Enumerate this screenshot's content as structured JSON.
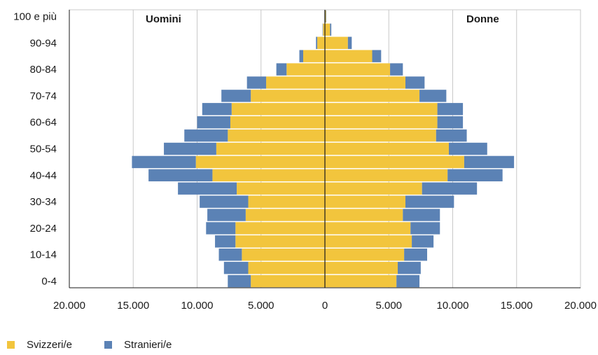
{
  "chart_data": {
    "type": "bar",
    "orientation": "horizontal",
    "subtype": "population-pyramid",
    "side_labels": {
      "left": "Uomini",
      "right": "Donne"
    },
    "categories": [
      "0-4",
      "5-9",
      "10-14",
      "15-19",
      "20-24",
      "25-29",
      "30-34",
      "35-39",
      "40-44",
      "45-49",
      "50-54",
      "55-59",
      "60-64",
      "65-69",
      "70-74",
      "75-79",
      "80-84",
      "85-89",
      "90-94",
      "95-99",
      "100 e più"
    ],
    "category_labels": [
      "0-4",
      "",
      "10-14",
      "",
      "20-24",
      "",
      "30-34",
      "",
      "40-44",
      "",
      "50-54",
      "",
      "60-64",
      "",
      "70-74",
      "",
      "80-84",
      "",
      "90-94",
      "",
      "100 e più"
    ],
    "series": [
      {
        "name": "Svizzeri/e",
        "color": "#f2c53d",
        "men": [
          5800,
          6000,
          6500,
          7000,
          7000,
          6200,
          6000,
          6900,
          8800,
          10100,
          8500,
          7600,
          7400,
          7300,
          5800,
          4600,
          3000,
          1700,
          600,
          150,
          30
        ],
        "women": [
          5600,
          5700,
          6200,
          6800,
          6700,
          6100,
          6300,
          7600,
          9600,
          10900,
          9700,
          8700,
          8800,
          8800,
          7400,
          6300,
          5100,
          3700,
          1800,
          400,
          80
        ]
      },
      {
        "name": "Stranieri/e",
        "color": "#5b82b5",
        "men": [
          1800,
          1900,
          1800,
          1600,
          2300,
          3000,
          3800,
          4600,
          5000,
          5000,
          4100,
          3400,
          2600,
          2300,
          2300,
          1500,
          800,
          300,
          100,
          30,
          10
        ],
        "women": [
          1800,
          1800,
          1800,
          1700,
          2300,
          2900,
          3800,
          4300,
          4300,
          3900,
          3000,
          2400,
          2000,
          2000,
          2100,
          1500,
          1000,
          700,
          300,
          100,
          30
        ]
      }
    ],
    "x_ticks": [
      "20.000",
      "15.000",
      "10.000",
      "5.000",
      "0",
      "5.000",
      "10.000",
      "15.000",
      "20.000"
    ],
    "xlim": [
      -20000,
      20000
    ],
    "grid": true,
    "legend": "bottom-left"
  },
  "legend": {
    "items": [
      {
        "label": "Svizzeri/e",
        "color": "#f2c53d"
      },
      {
        "label": "Stranieri/e",
        "color": "#5b82b5"
      }
    ]
  }
}
